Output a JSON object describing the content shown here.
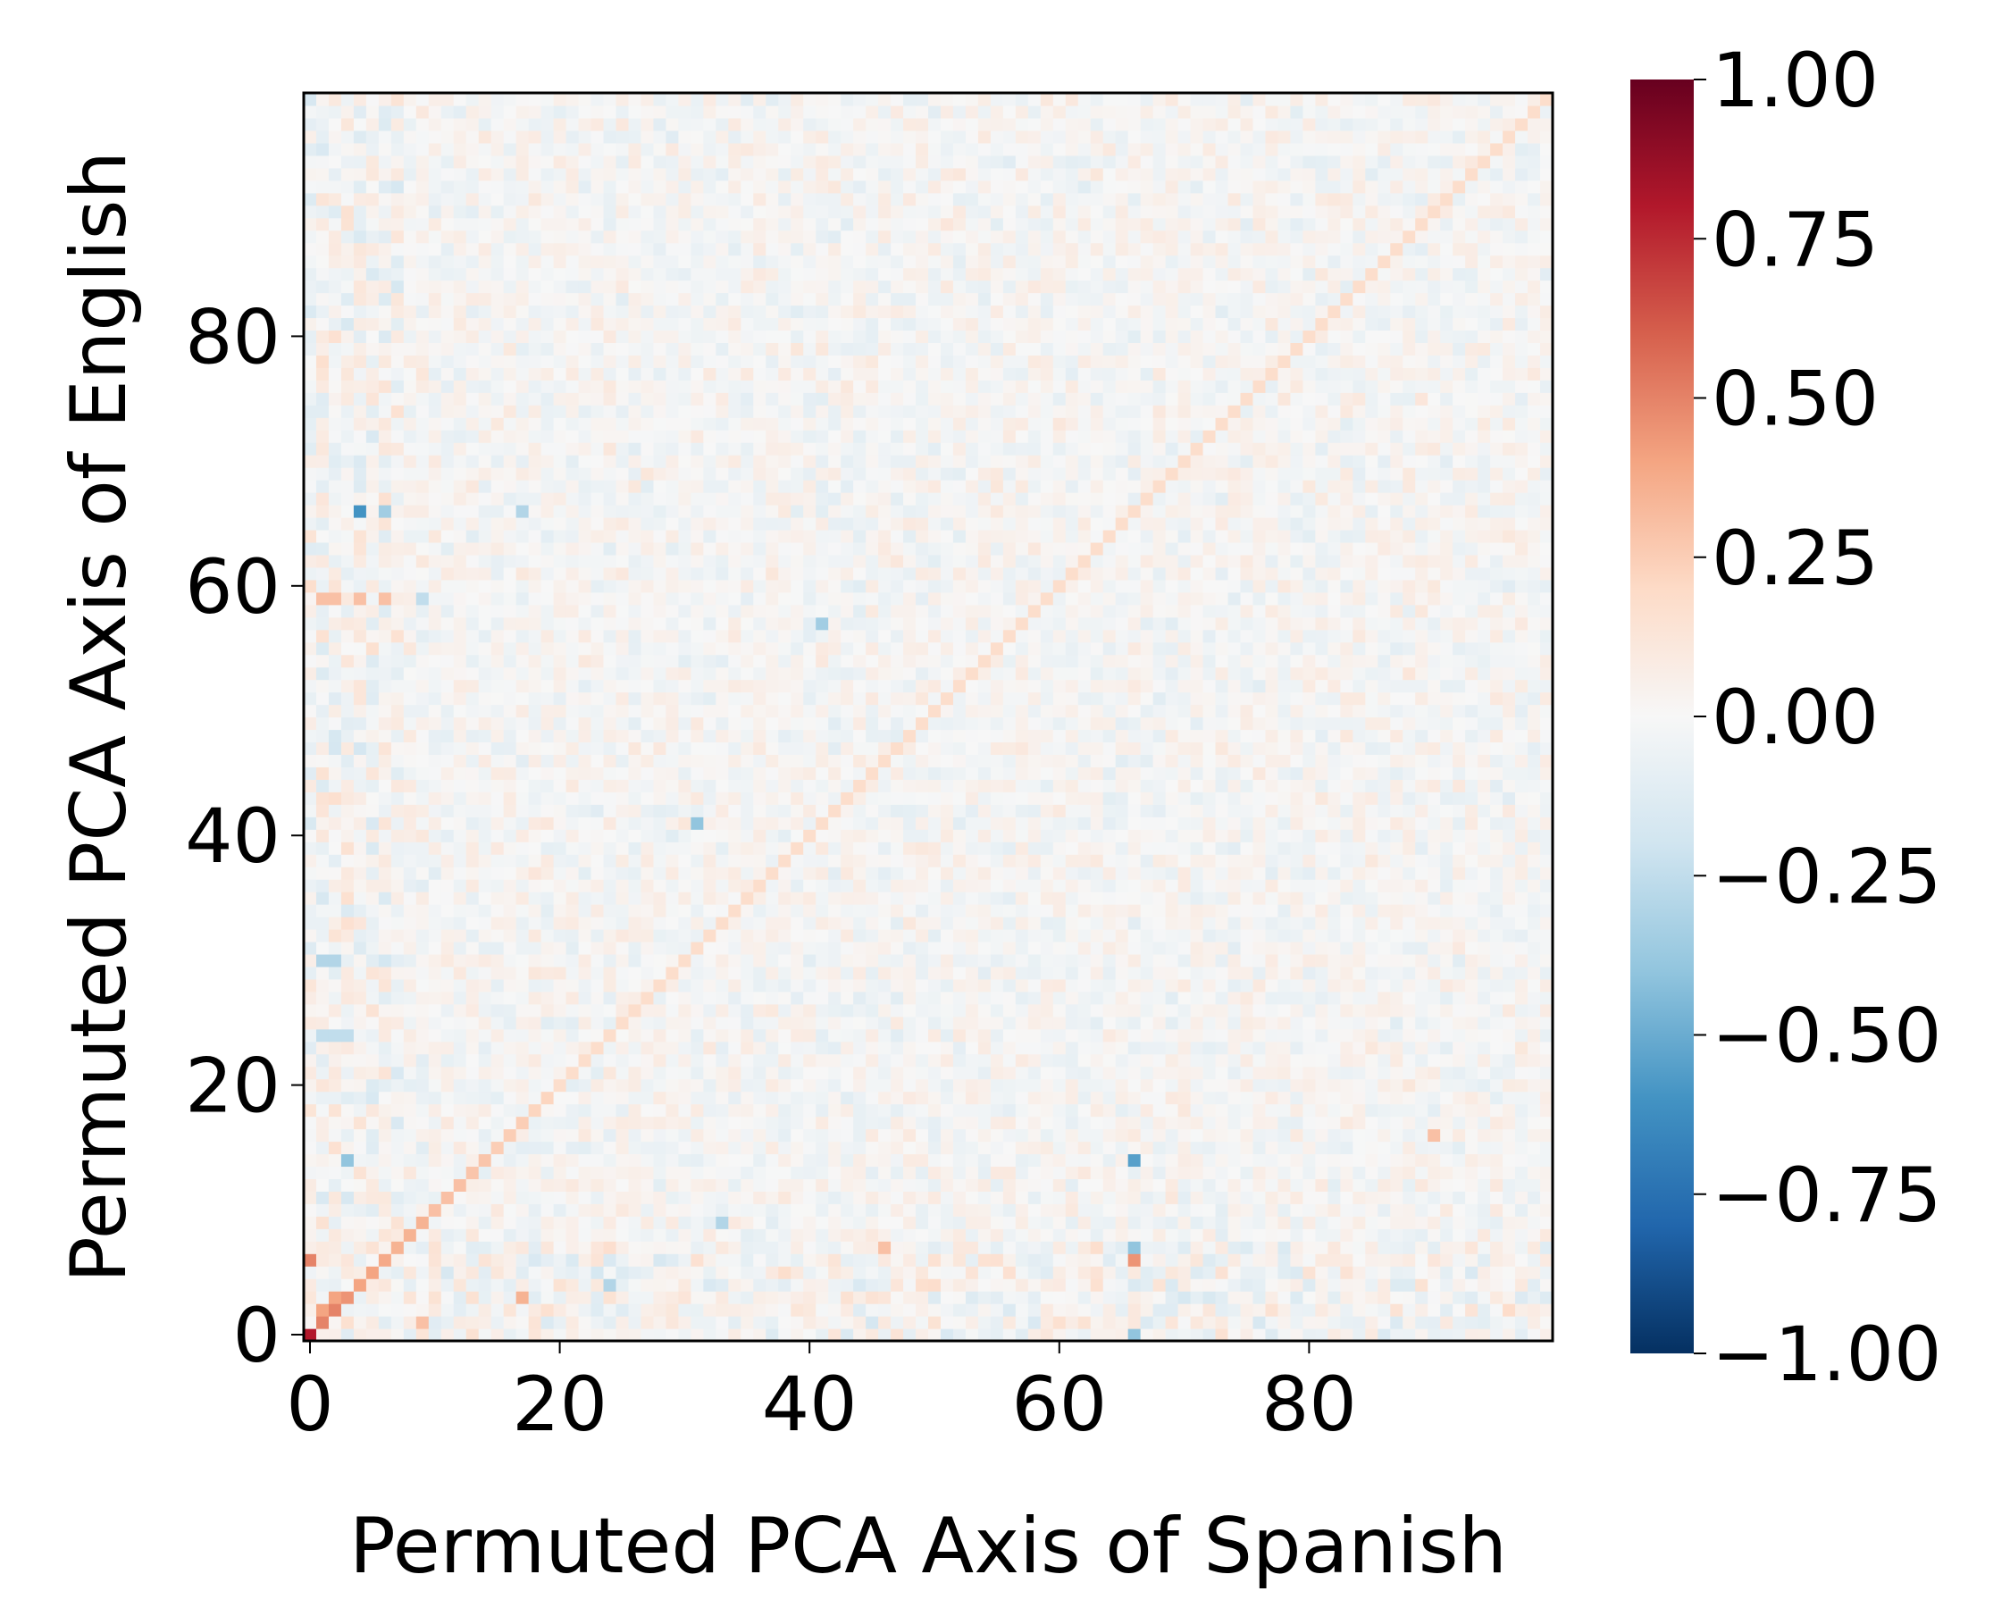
{
  "chart_data": {
    "type": "heatmap",
    "title": "",
    "xlabel": "Permuted PCA Axis of Spanish",
    "ylabel": "Permuted PCA Axis of English",
    "n_rows": 100,
    "n_cols": 100,
    "x_ticks": [
      "0",
      "20",
      "40",
      "60",
      "80"
    ],
    "y_ticks": [
      "0",
      "20",
      "40",
      "60",
      "80"
    ],
    "colorbar": {
      "colormap": "RdBu_r",
      "vmin": -1.0,
      "vmax": 1.0,
      "ticks": [
        "1.00",
        "0.75",
        "0.50",
        "0.25",
        "0.00",
        "−0.25",
        "−0.50",
        "−0.75",
        "−1.00"
      ]
    },
    "diagonal_values_first": [
      0.8,
      0.5,
      0.5,
      0.45,
      0.4,
      0.4,
      0.38,
      0.35,
      0.35,
      0.35,
      0.3,
      0.3,
      0.3,
      0.28,
      0.28,
      0.25,
      0.25,
      0.25,
      0.22,
      0.22
    ],
    "diagonal_value_rest": 0.18,
    "background_range": [
      -0.12,
      0.12
    ],
    "notable_cells": [
      {
        "x": 4,
        "y": 66,
        "value": -0.6
      },
      {
        "x": 6,
        "y": 66,
        "value": -0.35
      },
      {
        "x": 17,
        "y": 66,
        "value": -0.3
      },
      {
        "x": 66,
        "y": 14,
        "value": -0.55
      },
      {
        "x": 66,
        "y": 6,
        "value": 0.45
      },
      {
        "x": 66,
        "y": 7,
        "value": -0.4
      },
      {
        "x": 66,
        "y": 0,
        "value": -0.4
      },
      {
        "x": 0,
        "y": 6,
        "value": 0.5
      },
      {
        "x": 0,
        "y": 0,
        "value": 0.8
      },
      {
        "x": 3,
        "y": 14,
        "value": -0.4
      },
      {
        "x": 31,
        "y": 41,
        "value": -0.4
      },
      {
        "x": 41,
        "y": 57,
        "value": -0.35
      },
      {
        "x": 1,
        "y": 59,
        "value": 0.3
      },
      {
        "x": 2,
        "y": 59,
        "value": 0.3
      },
      {
        "x": 4,
        "y": 59,
        "value": 0.3
      },
      {
        "x": 6,
        "y": 59,
        "value": 0.3
      },
      {
        "x": 9,
        "y": 59,
        "value": -0.25
      },
      {
        "x": 1,
        "y": 30,
        "value": -0.3
      },
      {
        "x": 2,
        "y": 30,
        "value": -0.3
      },
      {
        "x": 1,
        "y": 24,
        "value": -0.25
      },
      {
        "x": 2,
        "y": 24,
        "value": -0.25
      },
      {
        "x": 3,
        "y": 24,
        "value": -0.25
      },
      {
        "x": 24,
        "y": 4,
        "value": -0.3
      },
      {
        "x": 17,
        "y": 3,
        "value": 0.35
      },
      {
        "x": 9,
        "y": 1,
        "value": 0.3
      },
      {
        "x": 2,
        "y": 3,
        "value": 0.4
      },
      {
        "x": 1,
        "y": 2,
        "value": 0.4
      },
      {
        "x": 33,
        "y": 9,
        "value": -0.3
      },
      {
        "x": 46,
        "y": 7,
        "value": 0.3
      },
      {
        "x": 90,
        "y": 16,
        "value": 0.3
      }
    ]
  }
}
